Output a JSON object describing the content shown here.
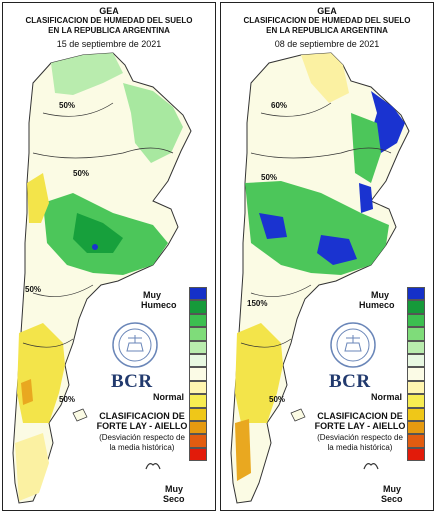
{
  "panels": [
    {
      "title": "GEA",
      "subtitle_line1": "CLASIFICACION DE HUMEDAD DEL SUELO",
      "subtitle_line2": "EN LA REPUBLICA ARGENTINA",
      "date": "15 de septiembre de 2021",
      "legend_top_label_1": "Muy",
      "legend_top_label_2": "Humeco",
      "legend_mid_label": "Normal",
      "legend_bottom_label_1": "Muy",
      "legend_bottom_label_2": "Seco",
      "brand": "BCR",
      "classification_line1": "CLASIFICACION DE",
      "classification_line2": "FORTE LAY - AIELLO",
      "classification_line3": "(Desviación respecto de",
      "classification_line4": "la media histórica)",
      "isolines": [
        "50%",
        "50%",
        "50%",
        "50%"
      ]
    },
    {
      "title": "GEA",
      "subtitle_line1": "CLASIFICACION DE HUMEDAD DEL SUELO",
      "subtitle_line2": "EN LA REPUBLICA ARGENTINA",
      "date": "08 de septiembre de 2021",
      "legend_top_label_1": "Muy",
      "legend_top_label_2": "Humeco",
      "legend_mid_label": "Normal",
      "legend_bottom_label_1": "Muy",
      "legend_bottom_label_2": "Seco",
      "brand": "BCR",
      "classification_line1": "CLASIFICACION DE",
      "classification_line2": "FORTE LAY - AIELLO",
      "classification_line3": "(Desviación respecto de",
      "classification_line4": "la media histórica)",
      "isolines": [
        "60%",
        "50%",
        "150%",
        "50%"
      ]
    }
  ],
  "legend_colors": [
    "#1530c8",
    "#169a3a",
    "#3cbf50",
    "#7fdc7a",
    "#b9ecae",
    "#e8f8e2",
    "#fbfbe6",
    "#fff5b0",
    "#f7ec52",
    "#efc718",
    "#e59a10",
    "#e25c10",
    "#e21b0a"
  ],
  "map_colors": {
    "very_wet": "#1a33d0",
    "wet_dark": "#17a03c",
    "wet": "#4cc65a",
    "wet_light": "#a8e8a0",
    "near_normal": "#e8f6dc",
    "normal": "#fbfbe4",
    "dry_light": "#fbf1a2",
    "dry": "#f3e44a",
    "dry_orange": "#e9a820"
  }
}
